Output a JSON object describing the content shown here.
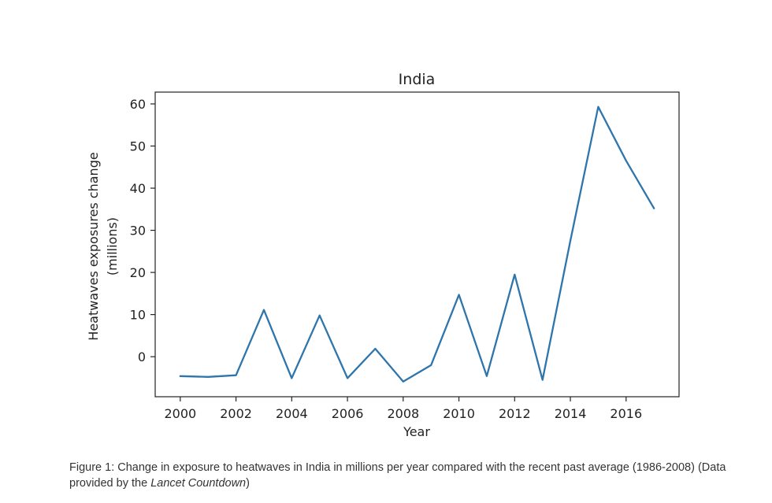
{
  "chart_data": {
    "type": "line",
    "title": "India",
    "xlabel": "Year",
    "ylabel": "Heatwaves exposures change",
    "ylabel_line2": "(millions)",
    "xlim": [
      1999.1,
      2017.9
    ],
    "ylim": [
      -9.5,
      62.8
    ],
    "xticks": [
      2000,
      2002,
      2004,
      2006,
      2008,
      2010,
      2012,
      2014,
      2016
    ],
    "yticks": [
      0,
      10,
      20,
      30,
      40,
      50,
      60
    ],
    "grid": false,
    "line_color": "#2e75ac",
    "series": [
      {
        "x": [
          2000,
          2001,
          2002,
          2003,
          2004,
          2005,
          2006,
          2007,
          2008,
          2009,
          2010,
          2011,
          2012,
          2013,
          2014,
          2015,
          2016,
          2017
        ],
        "values": [
          -4.6,
          -4.8,
          -4.4,
          11.1,
          -5.1,
          9.8,
          -5.1,
          1.9,
          -5.9,
          -2.0,
          14.7,
          -4.6,
          19.5,
          -5.5,
          27.5,
          59.3,
          46.5,
          35.2
        ]
      }
    ]
  },
  "caption": {
    "text_before": "Figure 1: Change in exposure to heatwaves in India in millions per year compared with the recent past average (1986-2008) (Data provided by the ",
    "italic": "Lancet Countdown",
    "text_after": ")"
  }
}
